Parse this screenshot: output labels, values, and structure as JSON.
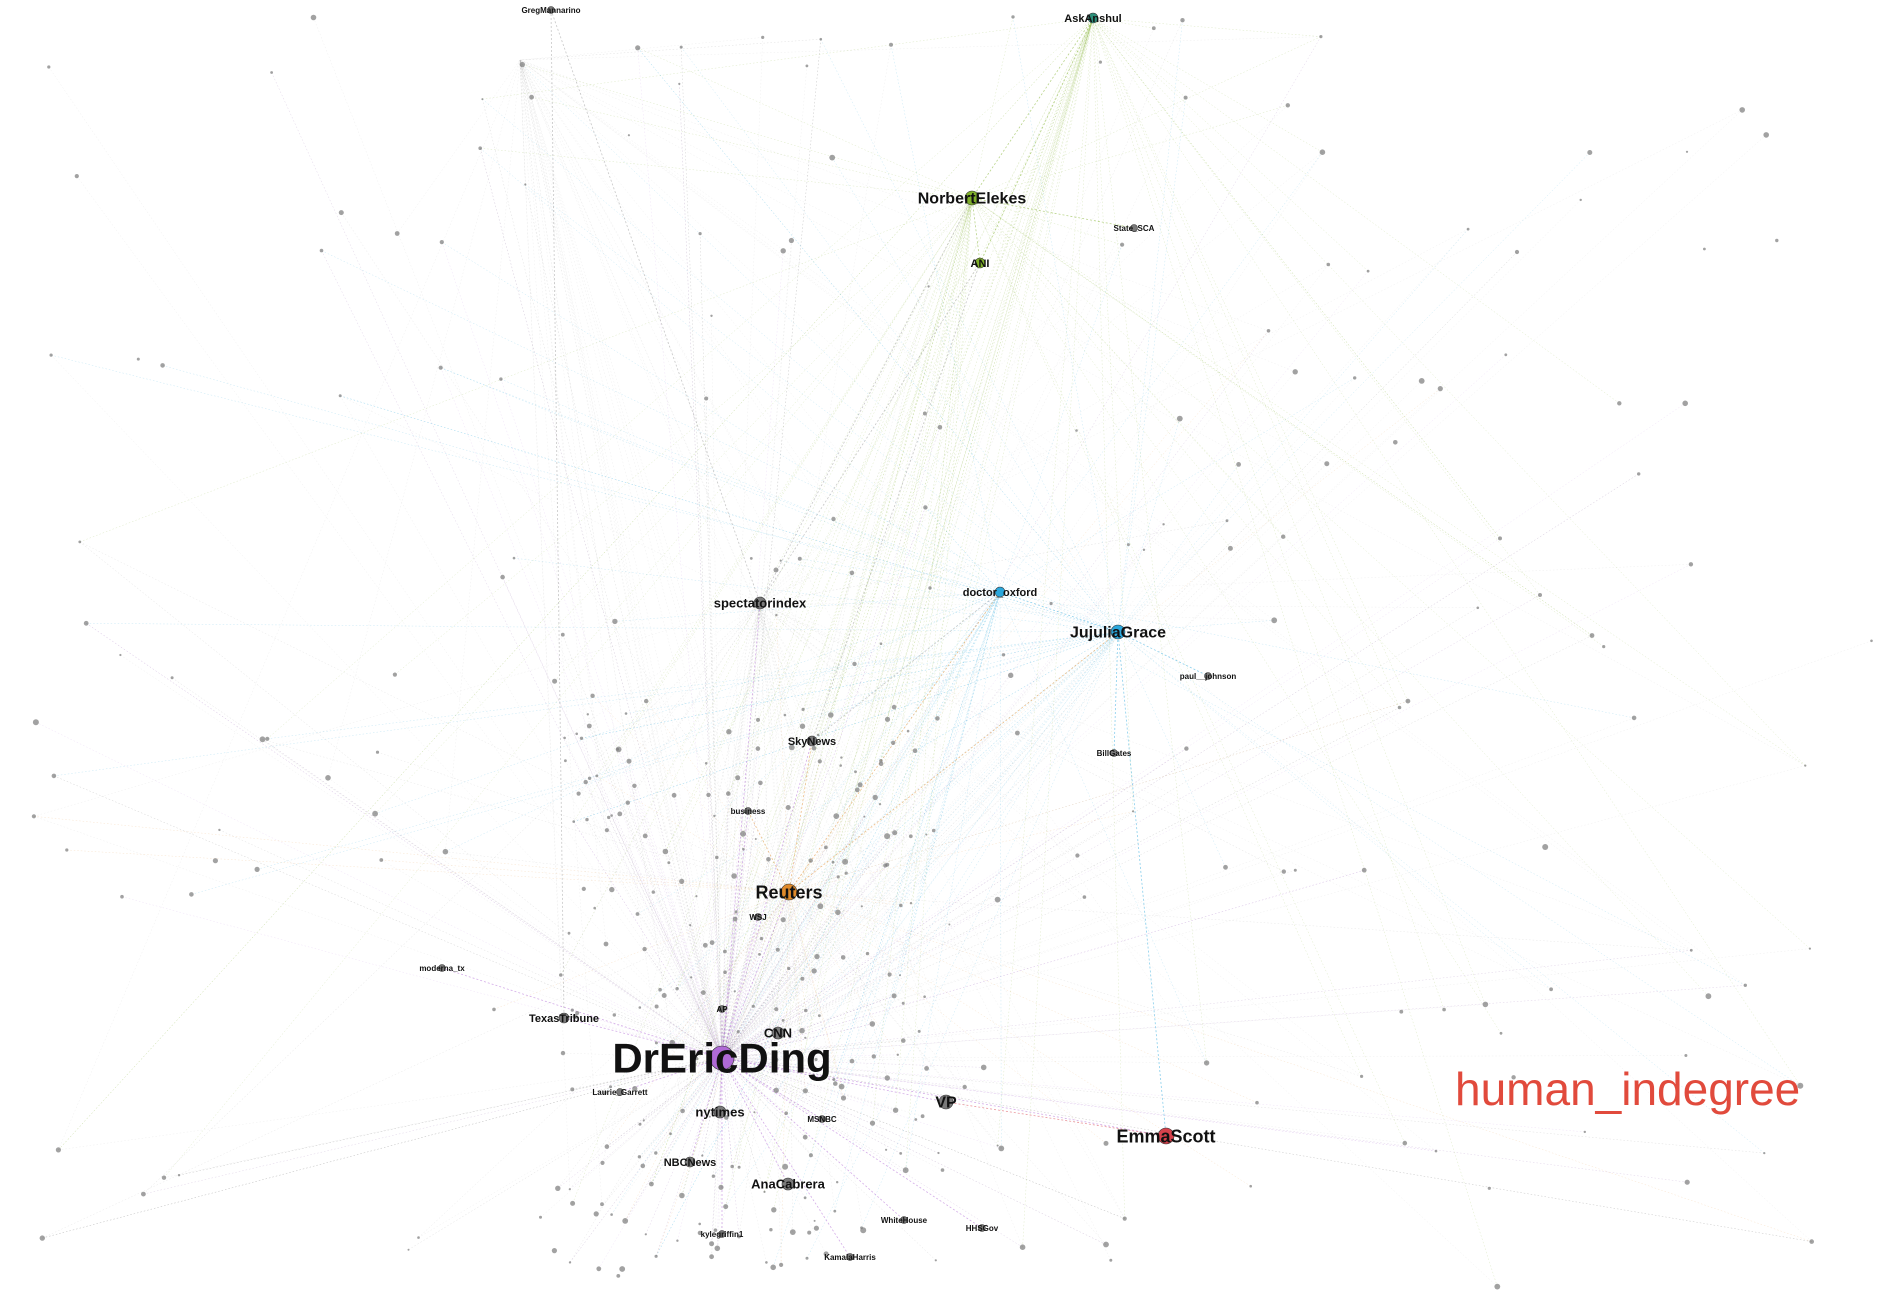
{
  "title": "human_indegree",
  "colors": {
    "background": "#ffffff",
    "title": "#e14a3c",
    "edge_default": "#9a9a9a",
    "community_green": "#7fb02a",
    "community_teal": "#2c8f7a",
    "community_blue": "#2aa7dc",
    "community_orange": "#e08a2a",
    "community_purple": "#b06ad6",
    "community_red": "#d8424c",
    "node_default": "#7a7a7a"
  },
  "nodes": [
    {
      "id": "DrEricDing",
      "label": "DrEricDing",
      "tier": 1,
      "color": "community_purple"
    },
    {
      "id": "Reuters",
      "label": "Reuters",
      "tier": 3,
      "color": "community_orange"
    },
    {
      "id": "EmmaScott",
      "label": "EmmaScott",
      "tier": 3,
      "color": "community_red"
    },
    {
      "id": "JujuliaGrace",
      "label": "JujuliaGrace",
      "tier": 4,
      "color": "community_blue"
    },
    {
      "id": "NorbertElekes",
      "label": "NorbertElekes",
      "tier": 4,
      "color": "community_green"
    },
    {
      "id": "spectatorindex",
      "label": "spectatorindex",
      "tier": 5,
      "color": "node_default"
    },
    {
      "id": "nytimes",
      "label": "nytimes",
      "tier": 5,
      "color": "node_default"
    },
    {
      "id": "VP",
      "label": "VP",
      "tier": 4,
      "color": "node_default"
    },
    {
      "id": "AnaCabrera",
      "label": "AnaCabrera",
      "tier": 5,
      "color": "node_default"
    },
    {
      "id": "CNN",
      "label": "CNN",
      "tier": 5,
      "color": "node_default"
    },
    {
      "id": "doctor_oxford",
      "label": "doctor_oxford",
      "tier": 6,
      "color": "community_blue"
    },
    {
      "id": "AskAnshul",
      "label": "AskAnshul",
      "tier": 6,
      "color": "community_teal"
    },
    {
      "id": "ANI",
      "label": "ANI",
      "tier": 6,
      "color": "community_green"
    },
    {
      "id": "SkyNews",
      "label": "SkyNews",
      "tier": 6,
      "color": "node_default"
    },
    {
      "id": "TexasTribune",
      "label": "TexasTribune",
      "tier": 6,
      "color": "node_default"
    },
    {
      "id": "NBCNews",
      "label": "NBCNews",
      "tier": 6,
      "color": "node_default"
    },
    {
      "id": "business",
      "label": "business",
      "tier": 7,
      "color": "node_default"
    },
    {
      "id": "State_SCA",
      "label": "State_SCA",
      "tier": 7,
      "color": "node_default"
    },
    {
      "id": "paul__johnson",
      "label": "paul__johnson",
      "tier": 7,
      "color": "node_default"
    },
    {
      "id": "moderna_tx",
      "label": "moderna_tx",
      "tier": 7,
      "color": "node_default"
    },
    {
      "id": "WhiteHouse",
      "label": "WhiteHouse",
      "tier": 7,
      "color": "node_default"
    },
    {
      "id": "HHSGov",
      "label": "HHSGov",
      "tier": 7,
      "color": "node_default"
    },
    {
      "id": "MSNBC",
      "label": "MSNBC",
      "tier": 7,
      "color": "node_default"
    },
    {
      "id": "Laurie_Garrett",
      "label": "Laurie_Garrett",
      "tier": 7,
      "color": "node_default"
    },
    {
      "id": "kylegriffin1",
      "label": "kylegriffin1",
      "tier": 7,
      "color": "node_default"
    },
    {
      "id": "AP",
      "label": "AP",
      "tier": 7,
      "color": "node_default"
    },
    {
      "id": "GregMannarino",
      "label": "GregMannarino",
      "tier": 7,
      "color": "node_default"
    },
    {
      "id": "BillGates",
      "label": "BillGates",
      "tier": 7,
      "color": "node_default"
    },
    {
      "id": "KamalaHarris",
      "label": "KamalaHarris",
      "tier": 7,
      "color": "node_default"
    },
    {
      "id": "WSJ",
      "label": "WSJ",
      "tier": 7,
      "color": "node_default"
    }
  ],
  "edges": [
    [
      "NorbertElekes",
      "AskAnshul"
    ],
    [
      "ANI",
      "AskAnshul"
    ],
    [
      "ANI",
      "NorbertElekes"
    ],
    [
      "spectatorindex",
      "NorbertElekes"
    ],
    [
      "spectatorindex",
      "ANI"
    ],
    [
      "SkyNews",
      "ANI"
    ],
    [
      "doctor_oxford",
      "JujuliaGrace"
    ],
    [
      "Reuters",
      "doctor_oxford"
    ],
    [
      "SkyNews",
      "doctor_oxford"
    ],
    [
      "DrEricDing",
      "Reuters"
    ],
    [
      "DrEricDing",
      "CNN"
    ],
    [
      "DrEricDing",
      "nytimes"
    ],
    [
      "DrEricDing",
      "AnaCabrera"
    ],
    [
      "DrEricDing",
      "NBCNews"
    ],
    [
      "DrEricDing",
      "VP"
    ],
    [
      "DrEricDing",
      "EmmaScott"
    ],
    [
      "DrEricDing",
      "spectatorindex"
    ],
    [
      "DrEricDing",
      "SkyNews"
    ],
    [
      "DrEricDing",
      "business"
    ],
    [
      "DrEricDing",
      "TexasTribune"
    ],
    [
      "DrEricDing",
      "AP"
    ],
    [
      "DrEricDing",
      "MSNBC"
    ],
    [
      "DrEricDing",
      "Laurie_Garrett"
    ],
    [
      "DrEricDing",
      "kylegriffin1"
    ],
    [
      "DrEricDing",
      "WhiteHouse"
    ],
    [
      "DrEricDing",
      "HHSGov"
    ],
    [
      "DrEricDing",
      "moderna_tx"
    ],
    [
      "DrEricDing",
      "KamalaHarris"
    ],
    [
      "DrEricDing",
      "WSJ"
    ],
    [
      "Reuters",
      "business"
    ],
    [
      "Reuters",
      "SkyNews"
    ],
    [
      "Reuters",
      "JujuliaGrace"
    ],
    [
      "JujuliaGrace",
      "paul__johnson"
    ],
    [
      "JujuliaGrace",
      "BillGates"
    ],
    [
      "JujuliaGrace",
      "EmmaScott"
    ],
    [
      "NorbertElekes",
      "State_SCA"
    ],
    [
      "GregMannarino",
      "spectatorindex"
    ],
    [
      "GregMannarino",
      "TexasTribune"
    ],
    [
      "EmmaScott",
      "VP"
    ]
  ]
}
